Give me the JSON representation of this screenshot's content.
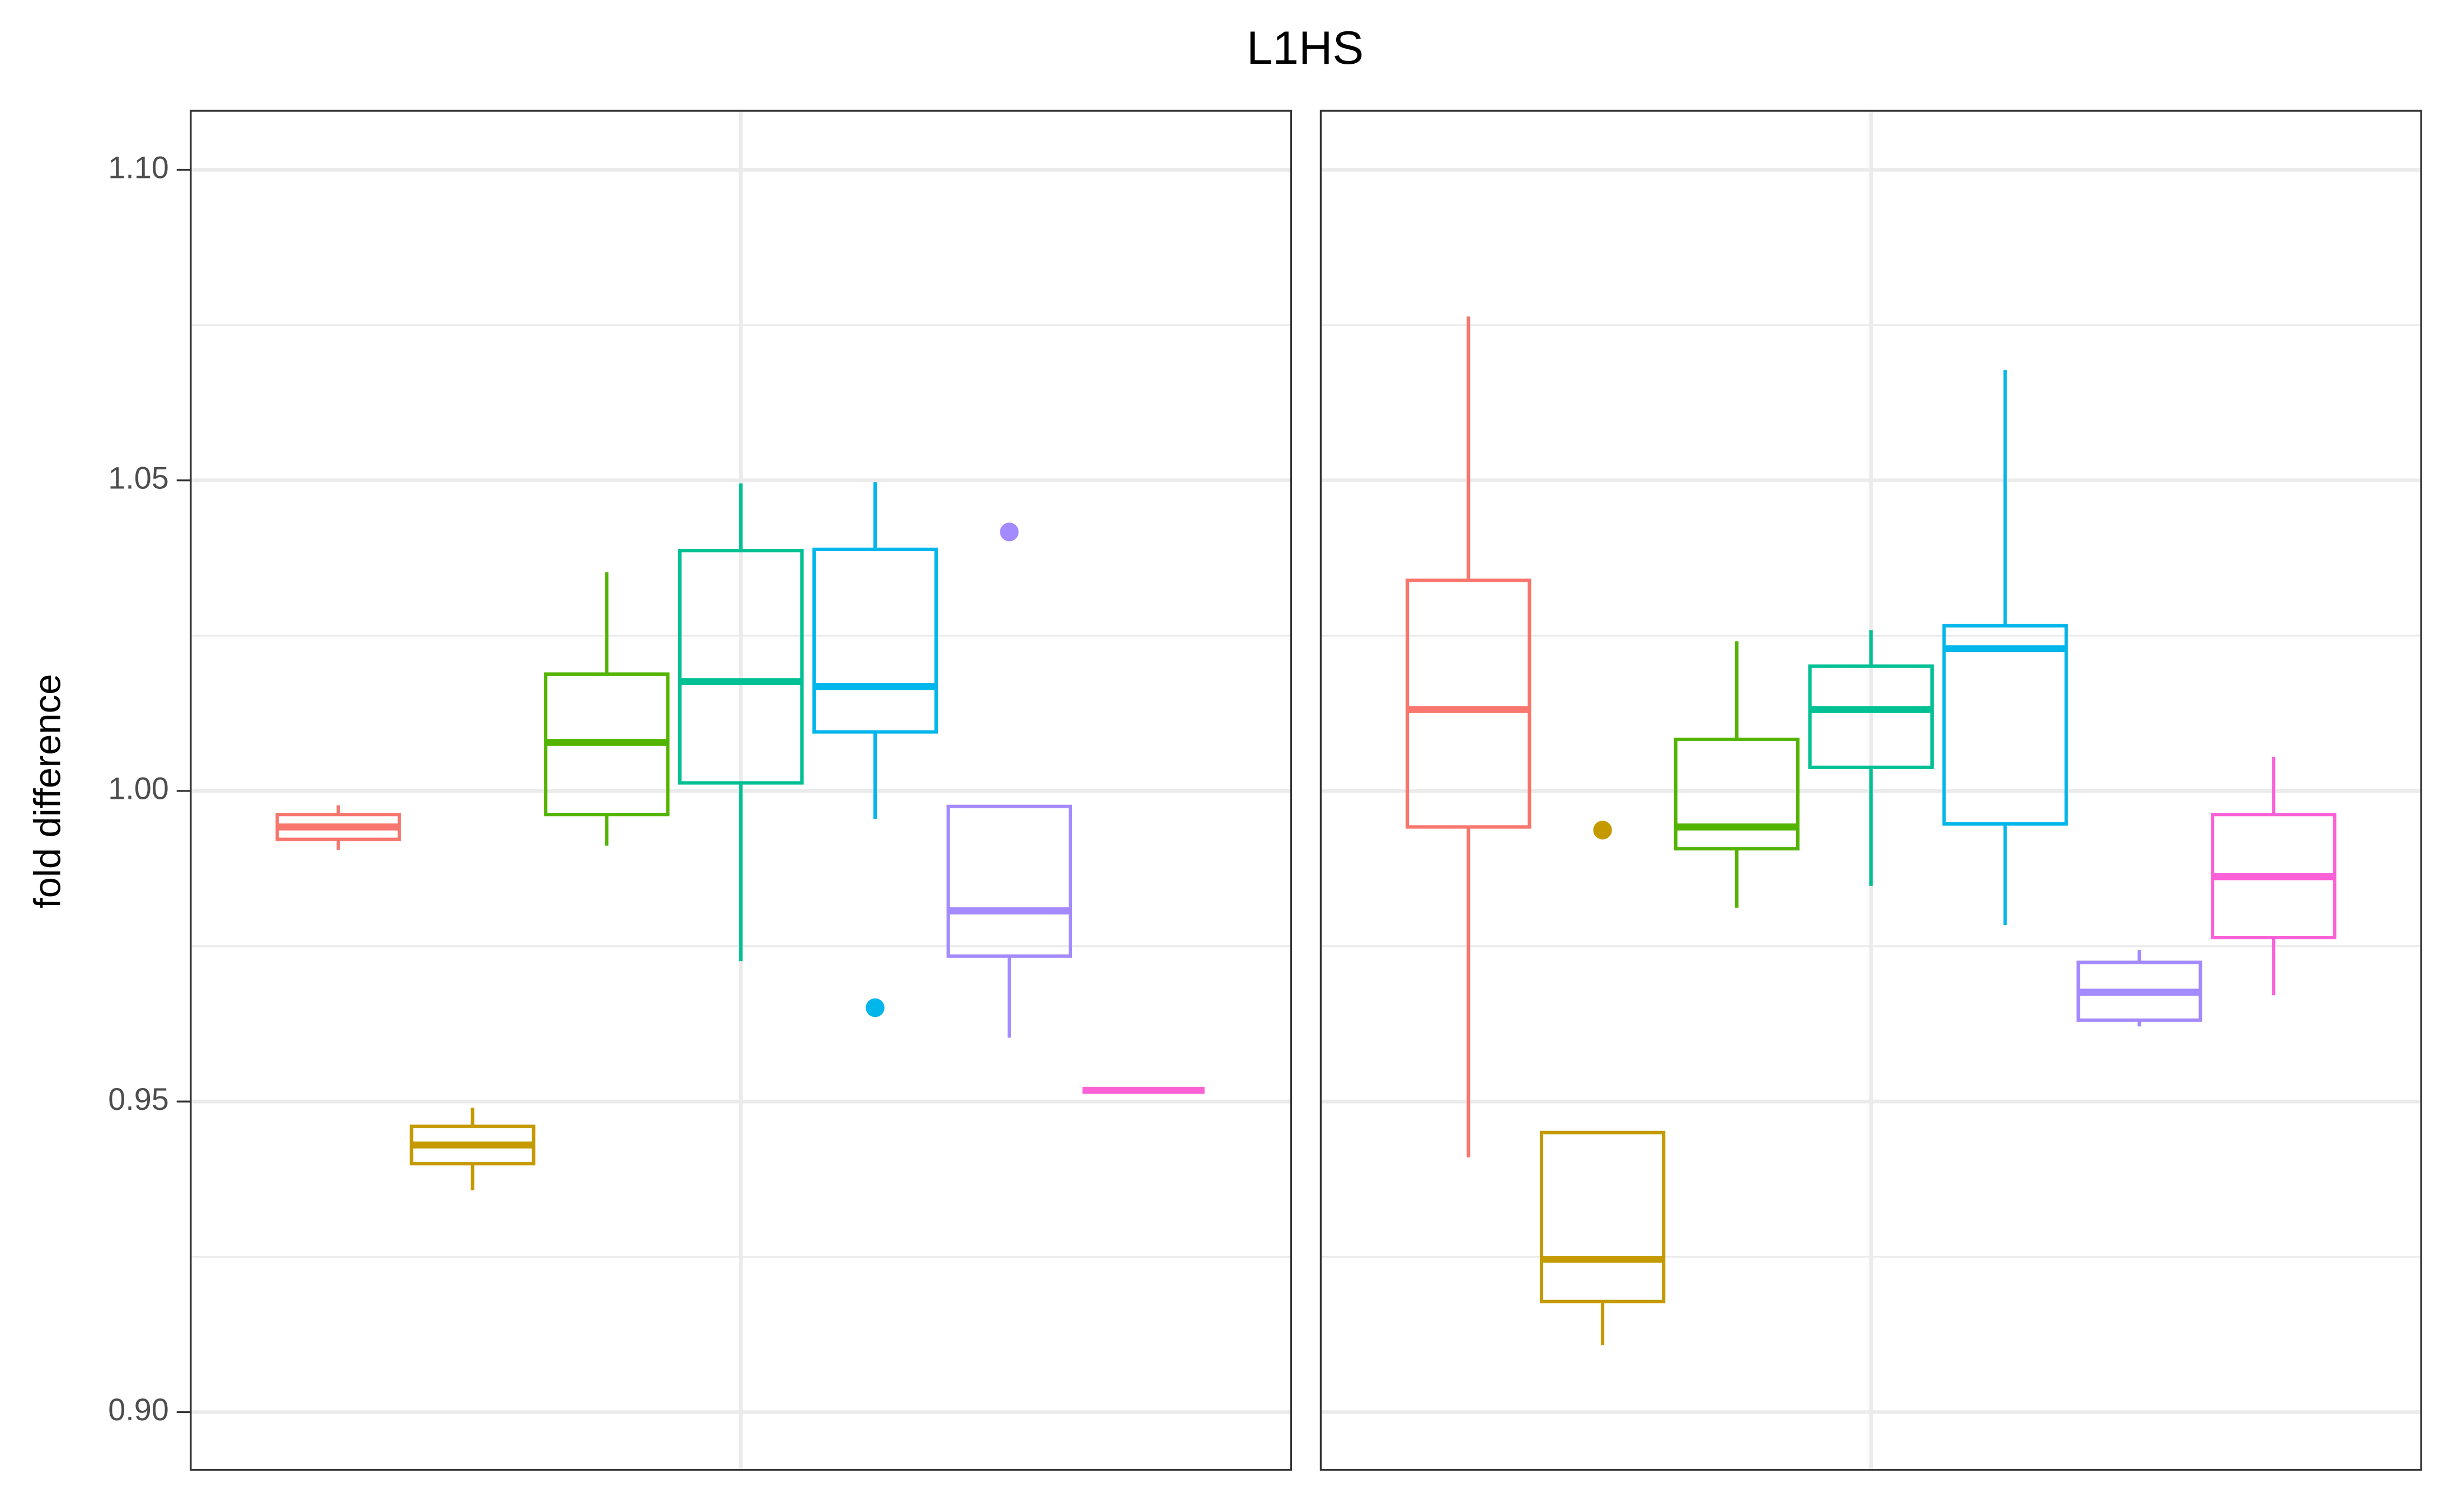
{
  "chart_data": {
    "type": "boxplot",
    "title": "L1HS",
    "ylabel": "fold difference",
    "ylim": [
      0.8907,
      1.1095
    ],
    "yticks": [
      {
        "value": 0.9,
        "label": "0.90"
      },
      0.95,
      {
        "value": 1,
        "label": "1.00"
      },
      1.05,
      {
        "value": 1.1,
        "label": "1.10"
      }
    ],
    "grid": true,
    "panels": [
      {
        "boxes": [
          {
            "color": "#F8766D",
            "whisker_low": 0.9905,
            "q1": 0.9922,
            "median": 0.9942,
            "q3": 0.9962,
            "whisker_high": 0.9977,
            "outliers": []
          },
          {
            "color": "#C49A00",
            "whisker_low": 0.9357,
            "q1": 0.94,
            "median": 0.943,
            "q3": 0.946,
            "whisker_high": 0.949,
            "outliers": []
          },
          {
            "color": "#53B400",
            "whisker_low": 0.9912,
            "q1": 0.9962,
            "median": 1.0078,
            "q3": 1.0188,
            "whisker_high": 1.0352,
            "outliers": []
          },
          {
            "color": "#00C094",
            "whisker_low": 0.9726,
            "q1": 1.0013,
            "median": 1.0176,
            "q3": 1.0387,
            "whisker_high": 1.0495,
            "outliers": []
          },
          {
            "color": "#00B6EB",
            "whisker_low": 0.9955,
            "q1": 1.0095,
            "median": 1.0168,
            "q3": 1.0389,
            "whisker_high": 1.0497,
            "outliers": [
              0.9651
            ]
          },
          {
            "color": "#A58AFF",
            "whisker_low": 0.9603,
            "q1": 0.9734,
            "median": 0.9807,
            "q3": 0.9975,
            "whisker_high": 0.9975,
            "outliers": [
              1.0417
            ]
          },
          {
            "color": "#FB61D7",
            "whisker_low": 0.9518,
            "q1": 0.9518,
            "median": 0.9518,
            "q3": 0.9518,
            "whisker_high": 0.9518,
            "outliers": []
          }
        ]
      },
      {
        "boxes": [
          {
            "color": "#F8766D",
            "whisker_low": 0.941,
            "q1": 0.9942,
            "median": 1.0131,
            "q3": 1.0339,
            "whisker_high": 1.0764,
            "outliers": []
          },
          {
            "color": "#C49A00",
            "whisker_low": 0.9108,
            "q1": 0.9178,
            "median": 0.9246,
            "q3": 0.945,
            "whisker_high": 0.945,
            "outliers": [
              0.9937
            ]
          },
          {
            "color": "#53B400",
            "whisker_low": 0.9812,
            "q1": 0.9907,
            "median": 0.9942,
            "q3": 1.0083,
            "whisker_high": 1.0241,
            "outliers": []
          },
          {
            "color": "#00C094",
            "whisker_low": 0.9847,
            "q1": 1.0038,
            "median": 1.0131,
            "q3": 1.0201,
            "whisker_high": 1.0259,
            "outliers": []
          },
          {
            "color": "#00B6EB",
            "whisker_low": 0.9784,
            "q1": 0.9947,
            "median": 1.0229,
            "q3": 1.0266,
            "whisker_high": 1.0678,
            "outliers": []
          },
          {
            "color": "#A58AFF",
            "whisker_low": 0.9621,
            "q1": 0.9631,
            "median": 0.9676,
            "q3": 0.9724,
            "whisker_high": 0.9744,
            "outliers": []
          },
          {
            "color": "#FB61D7",
            "whisker_low": 0.9671,
            "q1": 0.9764,
            "median": 0.9862,
            "q3": 0.9962,
            "whisker_high": 1.0055,
            "outliers": []
          }
        ]
      }
    ]
  }
}
